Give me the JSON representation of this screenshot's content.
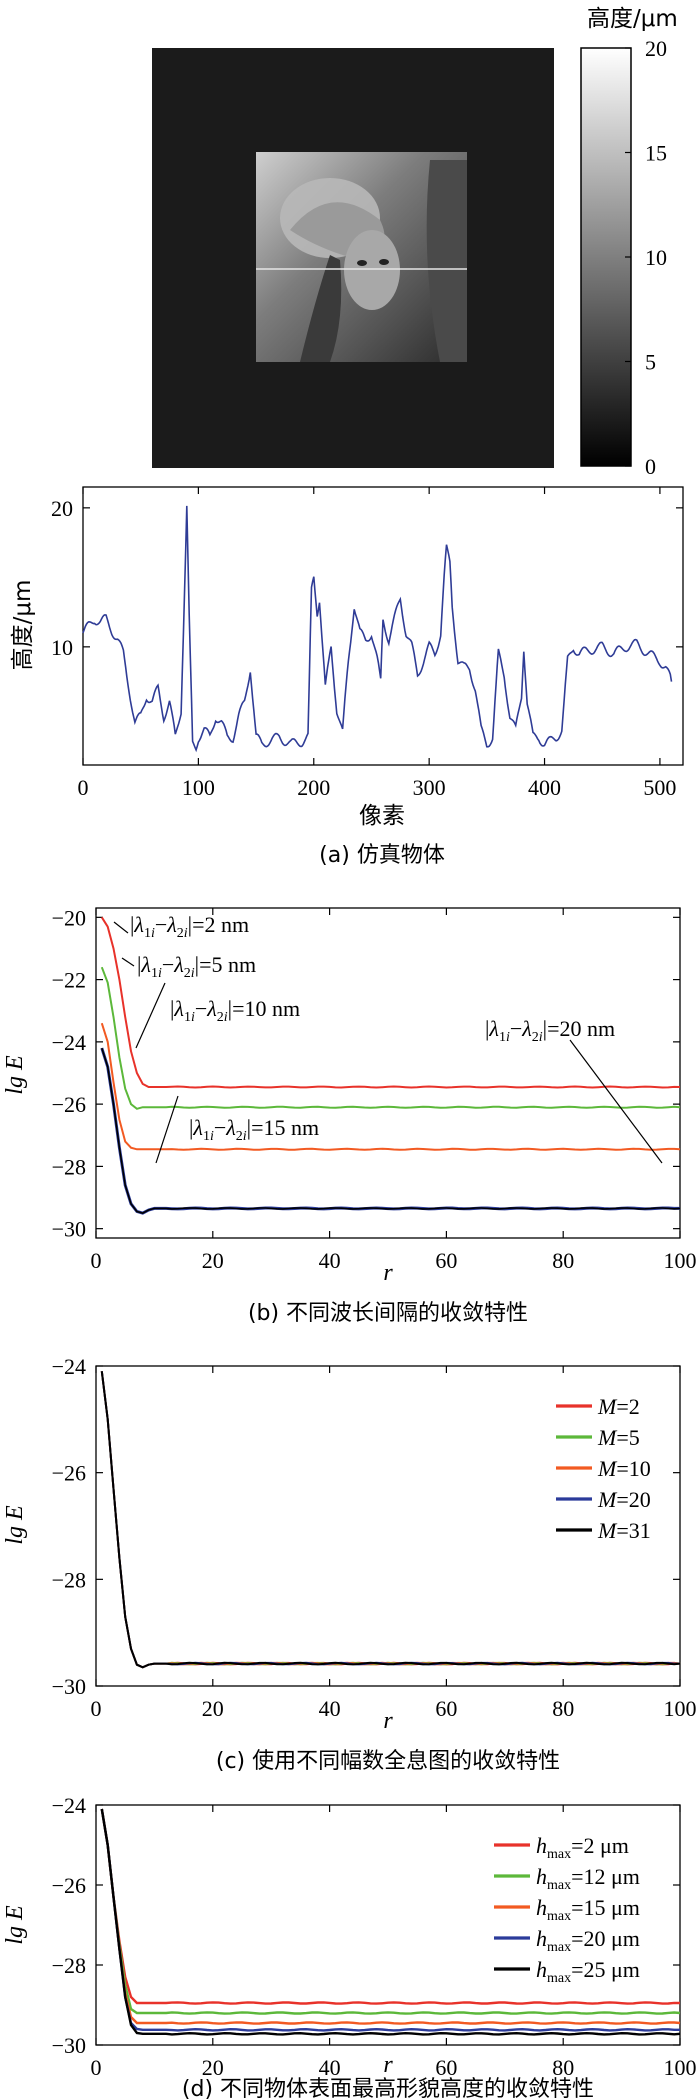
{
  "colors": {
    "red": "#e8322a",
    "green": "#5cb83a",
    "orange": "#f25a22",
    "blue": "#2b3b9a",
    "black": "#000000",
    "profile": "#2f3c96"
  },
  "panel_a": {
    "caption": "(a) 仿真物体",
    "image_description": "Lena",
    "colorbar": {
      "title": "高度/μm",
      "ticks": [
        "20",
        "15",
        "10",
        "5",
        "0"
      ],
      "range": [
        0,
        20
      ]
    },
    "profile": {
      "ylabel": "高度/μm",
      "xlabel": "像素",
      "xticks": [
        "0",
        "100",
        "200",
        "300",
        "400",
        "500"
      ],
      "yticks": [
        "20",
        "10"
      ]
    }
  },
  "panel_b": {
    "caption": "(b) 不同波长间隔的收敛特性",
    "ylabel": "lg E",
    "xlabel": "r",
    "xticks": [
      "0",
      "20",
      "40",
      "60",
      "80",
      "100"
    ],
    "yticks": [
      "−20",
      "−22",
      "−24",
      "−26",
      "−28",
      "−30"
    ],
    "annotations": [
      "|λ1i−λ2i|=2 nm",
      "|λ1i−λ2i|=5 nm",
      "|λ1i−λ2i|=10 nm",
      "|λ1i−λ2i|=15 nm",
      "|λ1i−λ2i|=20 nm"
    ]
  },
  "panel_c": {
    "caption": "(c) 使用不同幅数全息图的收敛特性",
    "ylabel": "lg E",
    "xlabel": "r",
    "xticks": [
      "0",
      "20",
      "40",
      "60",
      "80",
      "100"
    ],
    "yticks": [
      "−24",
      "−26",
      "−28",
      "−30"
    ],
    "legend": [
      "M=2",
      "M=5",
      "M=10",
      "M=20",
      "M=31"
    ]
  },
  "panel_d": {
    "caption": "(d) 不同物体表面最高形貌高度的收敛特性",
    "ylabel": "lg E",
    "xlabel": "r",
    "xticks": [
      "0",
      "20",
      "40",
      "60",
      "80",
      "100"
    ],
    "yticks": [
      "−24",
      "−26",
      "−28",
      "−30"
    ],
    "legend": [
      "hmax=2 μm",
      "hmax=12 μm",
      "hmax=15 μm",
      "hmax=20 μm",
      "hmax=25 μm"
    ]
  },
  "chart_data": [
    {
      "type": "line",
      "title": "(a) 仿真物体 — height profile",
      "xlabel": "像素",
      "ylabel": "高度/μm",
      "xlim": [
        0,
        520
      ],
      "ylim": [
        1.5,
        21.5
      ],
      "series": [
        {
          "name": "profile",
          "x": [
            0,
            5,
            10,
            15,
            20,
            25,
            30,
            35,
            40,
            45,
            50,
            55,
            60,
            65,
            70,
            75,
            80,
            85,
            88,
            90,
            92,
            95,
            98,
            100,
            105,
            110,
            115,
            120,
            125,
            130,
            135,
            140,
            145,
            150,
            155,
            160,
            170,
            180,
            190,
            195,
            198,
            200,
            203,
            205,
            210,
            215,
            220,
            225,
            228,
            230,
            235,
            240,
            245,
            250,
            255,
            258,
            260,
            265,
            270,
            275,
            280,
            285,
            290,
            295,
            300,
            305,
            310,
            313,
            315,
            318,
            320,
            325,
            330,
            335,
            340,
            345,
            350,
            355,
            360,
            365,
            370,
            375,
            380,
            382,
            385,
            390,
            395,
            400,
            405,
            410,
            415,
            420,
            425,
            430,
            440,
            450,
            460,
            470,
            480,
            490,
            500,
            505,
            510
          ],
          "y": [
            11,
            11.5,
            12,
            11.8,
            12,
            11.2,
            10.5,
            9.5,
            7,
            4.5,
            5,
            6.5,
            6,
            7,
            5,
            6,
            3.5,
            5.5,
            14,
            20,
            12,
            3,
            2.8,
            3.5,
            4,
            3.5,
            5,
            4.5,
            3.5,
            3.5,
            5,
            6,
            8.5,
            3.5,
            3,
            3.2,
            3.5,
            3,
            3.2,
            3.5,
            14,
            15,
            12.5,
            13.5,
            7,
            10,
            5.5,
            3.8,
            7,
            9,
            13,
            11,
            10.5,
            11,
            9,
            7.5,
            12,
            10.5,
            12,
            13.5,
            11,
            10,
            8,
            9,
            10,
            9.5,
            11,
            15,
            17,
            16,
            13,
            9,
            8.5,
            8.5,
            7,
            4,
            3,
            3.5,
            9.5,
            8,
            5,
            4,
            6.5,
            10,
            6,
            3.5,
            3.5,
            3,
            3.2,
            3.5,
            4,
            9,
            10,
            9.5,
            9.8,
            10,
            9.5,
            10,
            10.2,
            9.5,
            9,
            8.5,
            7.5
          ]
        }
      ]
    },
    {
      "type": "line",
      "title": "(b) 不同波长间隔的收敛特性",
      "xlabel": "r",
      "ylabel": "lg E",
      "xlim": [
        0,
        100
      ],
      "ylim": [
        -30.3,
        -19.7
      ],
      "series": [
        {
          "name": "2 nm",
          "x": [
            1,
            2,
            3,
            4,
            5,
            6,
            7,
            8,
            9,
            10,
            12,
            15,
            20,
            40,
            60,
            80,
            100
          ],
          "y": [
            -20,
            -20.3,
            -21,
            -22,
            -23.2,
            -24.3,
            -25,
            -25.35,
            -25.45,
            -25.45,
            -25.45,
            -25.45,
            -25.45,
            -25.45,
            -25.45,
            -25.45,
            -25.45
          ]
        },
        {
          "name": "5 nm",
          "x": [
            1,
            2,
            3,
            4,
            5,
            6,
            7,
            8,
            9,
            10,
            12,
            15,
            20,
            40,
            60,
            80,
            100
          ],
          "y": [
            -21.6,
            -22.1,
            -23.2,
            -24.5,
            -25.5,
            -26,
            -26.15,
            -26.1,
            -26.1,
            -26.1,
            -26.1,
            -26.1,
            -26.1,
            -26.1,
            -26.1,
            -26.1,
            -26.1
          ]
        },
        {
          "name": "10 nm",
          "x": [
            1,
            2,
            3,
            4,
            5,
            6,
            7,
            8,
            9,
            10,
            12,
            15,
            20,
            40,
            60,
            80,
            100
          ],
          "y": [
            -23.4,
            -24,
            -25.3,
            -26.5,
            -27.2,
            -27.4,
            -27.45,
            -27.45,
            -27.45,
            -27.45,
            -27.45,
            -27.45,
            -27.45,
            -27.45,
            -27.45,
            -27.45,
            -27.45
          ]
        },
        {
          "name": "15 nm",
          "x": [
            1,
            2,
            3,
            4,
            5,
            6,
            7,
            8,
            9,
            10,
            12,
            15,
            20,
            40,
            60,
            80,
            100
          ],
          "y": [
            -24.2,
            -24.8,
            -26,
            -27.4,
            -28.6,
            -29.2,
            -29.45,
            -29.5,
            -29.4,
            -29.35,
            -29.35,
            -29.35,
            -29.35,
            -29.35,
            -29.35,
            -29.35,
            -29.35
          ]
        },
        {
          "name": "20 nm",
          "x": [
            1,
            2,
            3,
            4,
            5,
            6,
            7,
            8,
            9,
            10,
            12,
            15,
            20,
            40,
            60,
            80,
            100
          ],
          "y": [
            -24.2,
            -24.8,
            -26,
            -27.4,
            -28.6,
            -29.2,
            -29.45,
            -29.5,
            -29.4,
            -29.35,
            -29.35,
            -29.35,
            -29.35,
            -29.35,
            -29.35,
            -29.35,
            -29.35
          ]
        }
      ]
    },
    {
      "type": "line",
      "title": "(c) 使用不同幅数全息图的收敛特性",
      "xlabel": "r",
      "ylabel": "lg E",
      "xlim": [
        0,
        100
      ],
      "ylim": [
        -30,
        -24
      ],
      "series": [
        {
          "name": "M=2",
          "x": [
            1,
            2,
            3,
            4,
            5,
            6,
            7,
            8,
            9,
            10,
            12,
            15,
            20,
            40,
            60,
            80,
            100
          ],
          "y": [
            -24.1,
            -25,
            -26.3,
            -27.6,
            -28.7,
            -29.3,
            -29.6,
            -29.65,
            -29.6,
            -29.58,
            -29.58,
            -29.58,
            -29.58,
            -29.58,
            -29.58,
            -29.58,
            -29.58
          ]
        },
        {
          "name": "M=5",
          "x": [
            1,
            2,
            3,
            4,
            5,
            6,
            7,
            8,
            9,
            10,
            12,
            15,
            20,
            40,
            60,
            80,
            100
          ],
          "y": [
            -24.1,
            -25,
            -26.3,
            -27.6,
            -28.7,
            -29.3,
            -29.6,
            -29.65,
            -29.6,
            -29.58,
            -29.58,
            -29.58,
            -29.58,
            -29.58,
            -29.58,
            -29.58,
            -29.58
          ]
        },
        {
          "name": "M=10",
          "x": [
            1,
            2,
            3,
            4,
            5,
            6,
            7,
            8,
            9,
            10,
            12,
            15,
            20,
            40,
            60,
            80,
            100
          ],
          "y": [
            -24.1,
            -25,
            -26.3,
            -27.6,
            -28.7,
            -29.3,
            -29.6,
            -29.65,
            -29.6,
            -29.58,
            -29.58,
            -29.58,
            -29.58,
            -29.58,
            -29.58,
            -29.58,
            -29.58
          ]
        },
        {
          "name": "M=20",
          "x": [
            1,
            2,
            3,
            4,
            5,
            6,
            7,
            8,
            9,
            10,
            12,
            15,
            20,
            40,
            60,
            80,
            100
          ],
          "y": [
            -24.1,
            -25,
            -26.3,
            -27.6,
            -28.7,
            -29.3,
            -29.6,
            -29.65,
            -29.6,
            -29.58,
            -29.58,
            -29.58,
            -29.58,
            -29.58,
            -29.58,
            -29.58,
            -29.58
          ]
        },
        {
          "name": "M=31",
          "x": [
            1,
            2,
            3,
            4,
            5,
            6,
            7,
            8,
            9,
            10,
            12,
            15,
            20,
            40,
            60,
            80,
            100
          ],
          "y": [
            -24.1,
            -25,
            -26.3,
            -27.6,
            -28.7,
            -29.3,
            -29.6,
            -29.65,
            -29.6,
            -29.58,
            -29.58,
            -29.58,
            -29.58,
            -29.58,
            -29.58,
            -29.58,
            -29.58
          ]
        }
      ]
    },
    {
      "type": "line",
      "title": "(d) 不同物体表面最高形貌高度的收敛特性",
      "xlabel": "r",
      "ylabel": "lg E",
      "xlim": [
        0,
        100
      ],
      "ylim": [
        -30,
        -24
      ],
      "series": [
        {
          "name": "hmax=2 μm",
          "x": [
            1,
            2,
            3,
            4,
            5,
            6,
            7,
            8,
            10,
            15,
            20,
            40,
            60,
            80,
            100
          ],
          "y": [
            -24.1,
            -25,
            -26.3,
            -27.4,
            -28.3,
            -28.8,
            -28.95,
            -28.95,
            -28.95,
            -28.95,
            -28.95,
            -28.95,
            -28.95,
            -28.95,
            -28.95
          ]
        },
        {
          "name": "hmax=12 μm",
          "x": [
            1,
            2,
            3,
            4,
            5,
            6,
            7,
            8,
            10,
            15,
            20,
            40,
            60,
            80,
            100
          ],
          "y": [
            -24.1,
            -25,
            -26.3,
            -27.5,
            -28.5,
            -29.1,
            -29.2,
            -29.2,
            -29.2,
            -29.2,
            -29.2,
            -29.2,
            -29.2,
            -29.2,
            -29.2
          ]
        },
        {
          "name": "hmax=15 μm",
          "x": [
            1,
            2,
            3,
            4,
            5,
            6,
            7,
            8,
            10,
            15,
            20,
            40,
            60,
            80,
            100
          ],
          "y": [
            -24.1,
            -25,
            -26.3,
            -27.6,
            -28.7,
            -29.3,
            -29.45,
            -29.45,
            -29.45,
            -29.45,
            -29.45,
            -29.45,
            -29.45,
            -29.45,
            -29.45
          ]
        },
        {
          "name": "hmax=20 μm",
          "x": [
            1,
            2,
            3,
            4,
            5,
            6,
            7,
            8,
            10,
            15,
            20,
            40,
            60,
            80,
            100
          ],
          "y": [
            -24.1,
            -25,
            -26.3,
            -27.6,
            -28.8,
            -29.45,
            -29.6,
            -29.62,
            -29.62,
            -29.62,
            -29.62,
            -29.62,
            -29.62,
            -29.62,
            -29.62
          ]
        },
        {
          "name": "hmax=25 μm",
          "x": [
            1,
            2,
            3,
            4,
            5,
            6,
            7,
            8,
            10,
            15,
            20,
            40,
            60,
            80,
            100
          ],
          "y": [
            -24.1,
            -25,
            -26.3,
            -27.6,
            -28.8,
            -29.5,
            -29.7,
            -29.72,
            -29.72,
            -29.72,
            -29.72,
            -29.72,
            -29.72,
            -29.72,
            -29.72
          ]
        }
      ]
    }
  ]
}
